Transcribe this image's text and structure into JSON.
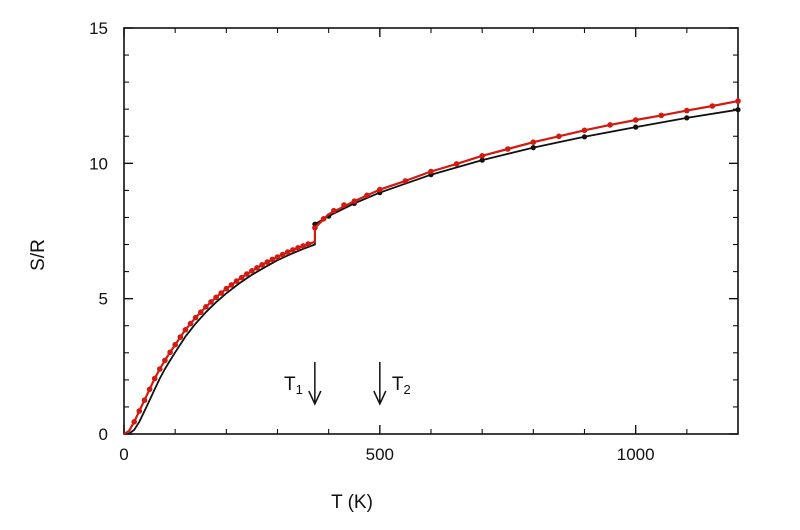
{
  "chart_data": {
    "type": "line",
    "title": "",
    "xlabel": "T (K)",
    "ylabel": "S/R",
    "xlim": [
      0,
      1200
    ],
    "ylim": [
      0,
      15
    ],
    "xticks": [
      0,
      500,
      1000
    ],
    "yticks": [
      0,
      5,
      10,
      15
    ],
    "grid": false,
    "legend": "none",
    "series": [
      {
        "color": "#111111",
        "x": [
          0,
          10,
          20,
          30,
          40,
          50,
          60,
          70,
          80,
          90,
          100,
          120,
          140,
          160,
          180,
          200,
          225,
          250,
          275,
          300,
          325,
          350,
          373,
          373,
          400,
          450,
          500,
          600,
          700,
          800,
          900,
          1000,
          1100,
          1200
        ],
        "y": [
          0,
          0.02,
          0.15,
          0.45,
          0.85,
          1.25,
          1.65,
          2.05,
          2.4,
          2.72,
          3.02,
          3.6,
          4.08,
          4.5,
          4.87,
          5.2,
          5.56,
          5.88,
          6.16,
          6.42,
          6.64,
          6.84,
          7.0,
          7.75,
          8.05,
          8.52,
          8.92,
          9.58,
          10.12,
          10.58,
          10.98,
          11.34,
          11.68,
          11.98
        ],
        "markers_x": [
          373,
          400,
          450,
          500,
          600,
          700,
          800,
          900,
          1000,
          1100,
          1200
        ],
        "markers_y": [
          7.75,
          8.05,
          8.52,
          8.92,
          9.58,
          10.12,
          10.58,
          10.98,
          11.34,
          11.68,
          11.98
        ]
      },
      {
        "color": "#d11a10",
        "x": [
          0,
          10,
          20,
          30,
          40,
          50,
          60,
          70,
          80,
          90,
          100,
          120,
          140,
          160,
          180,
          200,
          225,
          250,
          275,
          300,
          325,
          350,
          373,
          373,
          400,
          450,
          500,
          550,
          600,
          650,
          700,
          750,
          800,
          850,
          900,
          950,
          1000,
          1050,
          1100,
          1150,
          1200
        ],
        "y": [
          0,
          0.12,
          0.45,
          0.85,
          1.25,
          1.65,
          2.05,
          2.4,
          2.72,
          3.02,
          3.3,
          3.85,
          4.3,
          4.7,
          5.05,
          5.37,
          5.72,
          6.03,
          6.3,
          6.54,
          6.76,
          6.95,
          7.1,
          7.62,
          8.12,
          8.6,
          9.03,
          9.35,
          9.7,
          9.98,
          10.28,
          10.53,
          10.78,
          11.0,
          11.22,
          11.42,
          11.6,
          11.77,
          11.95,
          12.12,
          12.3
        ],
        "markers_x": [
          20,
          30,
          40,
          50,
          60,
          70,
          80,
          90,
          100,
          110,
          120,
          130,
          140,
          150,
          160,
          170,
          180,
          190,
          200,
          210,
          220,
          230,
          240,
          250,
          260,
          270,
          280,
          290,
          300,
          310,
          320,
          330,
          340,
          350,
          360,
          373,
          390,
          410,
          430,
          450,
          475,
          500,
          550,
          600,
          650,
          700,
          750,
          800,
          850,
          900,
          950,
          1000,
          1050,
          1100,
          1150,
          1200
        ],
        "markers_y": [
          0.45,
          0.85,
          1.25,
          1.65,
          2.05,
          2.4,
          2.72,
          3.02,
          3.3,
          3.58,
          3.85,
          4.08,
          4.3,
          4.5,
          4.7,
          4.88,
          5.05,
          5.21,
          5.37,
          5.51,
          5.65,
          5.78,
          5.91,
          6.03,
          6.14,
          6.25,
          6.35,
          6.45,
          6.54,
          6.63,
          6.72,
          6.8,
          6.88,
          6.95,
          7.02,
          7.62,
          7.95,
          8.25,
          8.46,
          8.6,
          8.82,
          9.03,
          9.35,
          9.7,
          9.98,
          10.28,
          10.53,
          10.78,
          11.0,
          11.22,
          11.42,
          11.6,
          11.77,
          11.95,
          12.12,
          12.3
        ]
      }
    ],
    "annotations": [
      {
        "label": "T",
        "sub": "1",
        "arrow_x": 373,
        "side": "left"
      },
      {
        "label": "T",
        "sub": "2",
        "arrow_x": 500,
        "side": "right"
      }
    ]
  }
}
